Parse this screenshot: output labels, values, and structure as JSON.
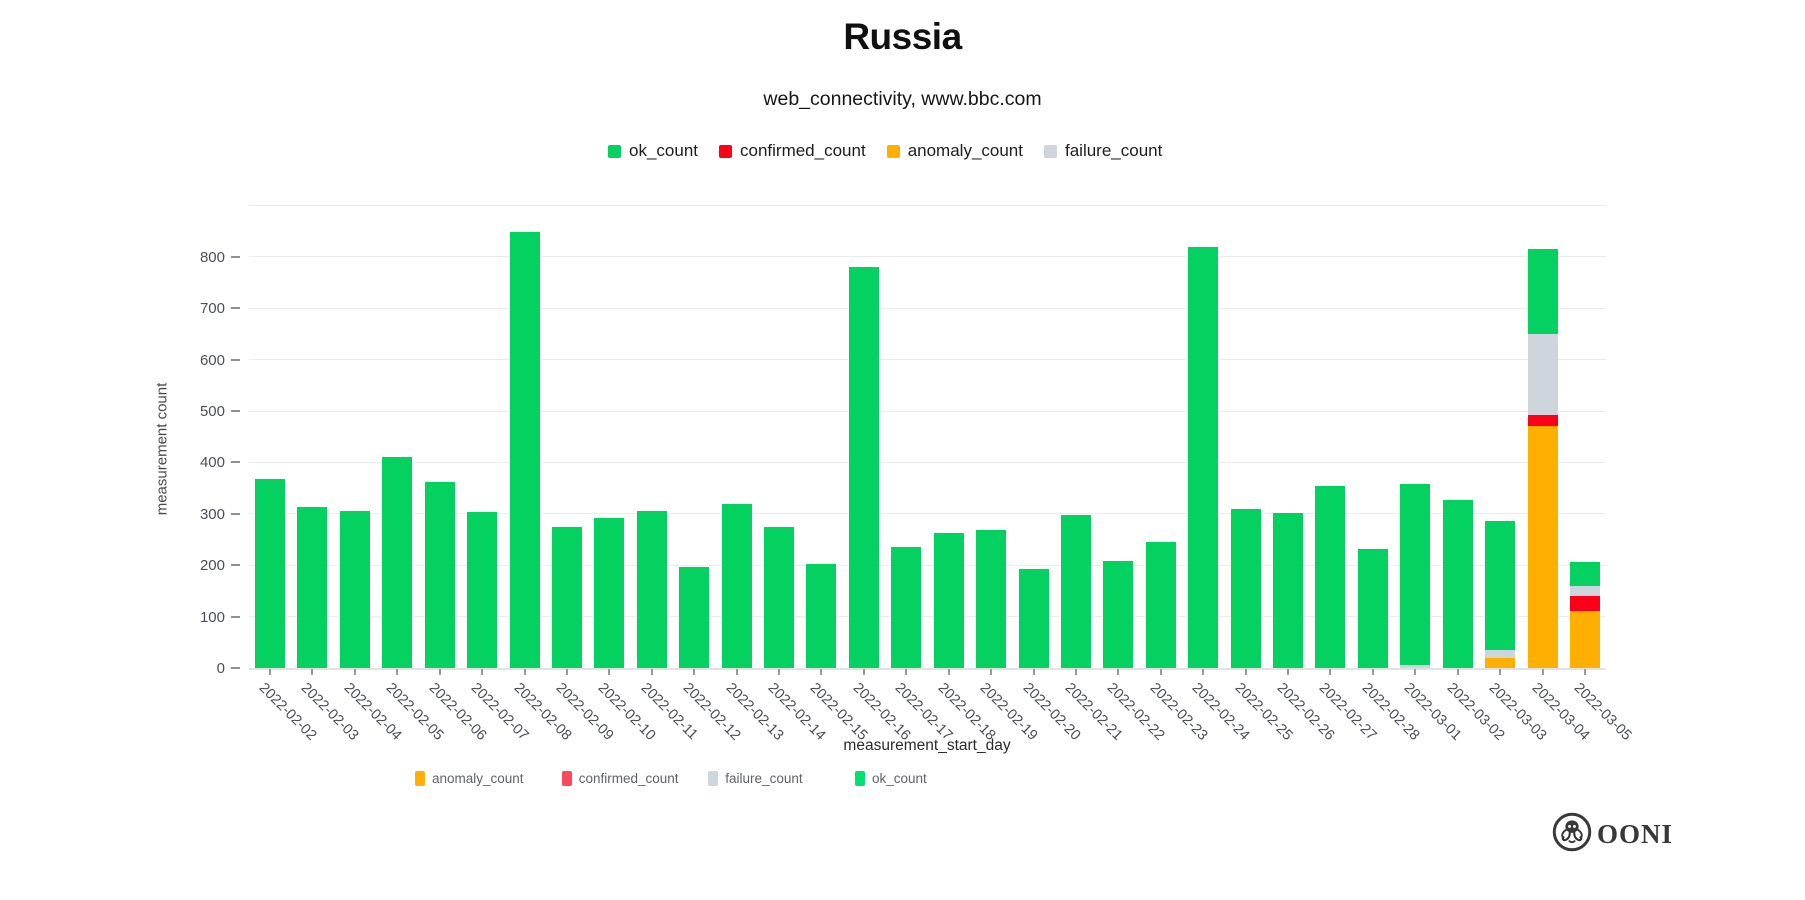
{
  "header": {
    "title": "Russia",
    "subtitle": "web_connectivity, www.bbc.com"
  },
  "legend_top": [
    {
      "label": "ok_count",
      "color": "#04d160"
    },
    {
      "label": "confirmed_count",
      "color": "#fb0018"
    },
    {
      "label": "anomaly_count",
      "color": "#ffaf00"
    },
    {
      "label": "failure_count",
      "color": "#cfd5dc"
    }
  ],
  "legend_bottom": [
    {
      "label": "anomaly_count",
      "color": "#ffaf00"
    },
    {
      "label": "confirmed_count",
      "color": "#fa4b5c"
    },
    {
      "label": "failure_count",
      "color": "#cfd5dc"
    },
    {
      "label": "ok_count",
      "color": "#00e070"
    }
  ],
  "chart_data": {
    "type": "bar",
    "stacked": true,
    "title": "Russia",
    "subtitle": "web_connectivity, www.bbc.com",
    "xlabel": "measurement_start_day",
    "ylabel": "measurement count",
    "ylim": [
      0,
      900
    ],
    "ytick_interval": 100,
    "ytick_label_max": 800,
    "grid": true,
    "legend_position": "top",
    "categories": [
      "2022-02-02",
      "2022-02-03",
      "2022-02-04",
      "2022-02-05",
      "2022-02-06",
      "2022-02-07",
      "2022-02-08",
      "2022-02-09",
      "2022-02-10",
      "2022-02-11",
      "2022-02-12",
      "2022-02-13",
      "2022-02-14",
      "2022-02-15",
      "2022-02-16",
      "2022-02-17",
      "2022-02-18",
      "2022-02-19",
      "2022-02-20",
      "2022-02-21",
      "2022-02-22",
      "2022-02-23",
      "2022-02-24",
      "2022-02-25",
      "2022-02-26",
      "2022-02-27",
      "2022-02-28",
      "2022-03-01",
      "2022-03-02",
      "2022-03-03",
      "2022-03-04",
      "2022-03-05"
    ],
    "series": [
      {
        "name": "anomaly_count",
        "color": "#ffaf00",
        "values": [
          0,
          0,
          0,
          0,
          0,
          0,
          0,
          0,
          0,
          0,
          0,
          0,
          0,
          0,
          0,
          0,
          0,
          0,
          0,
          0,
          0,
          0,
          0,
          0,
          0,
          0,
          0,
          0,
          0,
          20,
          471,
          110
        ]
      },
      {
        "name": "confirmed_count",
        "color": "#fb0018",
        "values": [
          0,
          0,
          0,
          0,
          0,
          0,
          0,
          0,
          0,
          0,
          0,
          0,
          0,
          0,
          0,
          0,
          0,
          0,
          0,
          0,
          0,
          0,
          0,
          0,
          0,
          0,
          0,
          0,
          0,
          0,
          21,
          31
        ]
      },
      {
        "name": "failure_count",
        "color": "#cfd5dc",
        "values": [
          0,
          0,
          0,
          0,
          0,
          0,
          0,
          0,
          0,
          0,
          0,
          0,
          0,
          0,
          0,
          0,
          0,
          0,
          0,
          0,
          0,
          0,
          0,
          0,
          0,
          0,
          0,
          5,
          0,
          15,
          157,
          18
        ]
      },
      {
        "name": "ok_count",
        "color": "#04d160",
        "values": [
          367,
          314,
          305,
          411,
          361,
          303,
          848,
          275,
          291,
          305,
          196,
          320,
          274,
          203,
          780,
          236,
          262,
          268,
          193,
          297,
          209,
          245,
          819,
          310,
          301,
          354,
          232,
          354,
          326,
          252,
          167,
          47
        ]
      }
    ]
  },
  "footer": {
    "logo_text": "OONI"
  }
}
